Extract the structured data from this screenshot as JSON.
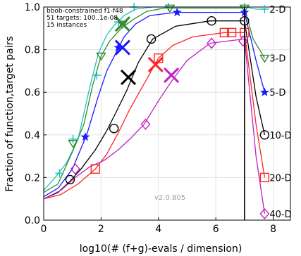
{
  "chart_data": {
    "type": "line",
    "title": "",
    "xlabel": "log10(# (f+g)-evals / dimension)",
    "ylabel": "Fraction of function,target pairs",
    "xlim": [
      0,
      8.6
    ],
    "ylim": [
      0,
      1.0
    ],
    "xticks": [
      "0",
      "2",
      "4",
      "6",
      "8"
    ],
    "yticks": [
      "0.0",
      "0.2",
      "0.4",
      "0.6",
      "0.8",
      "1.0"
    ],
    "legend_lines": [
      "bbob-constrained f1-f48",
      "51 targets: 100..1e-08",
      "15 instances"
    ],
    "version": "v2.0.805",
    "budget_line_x": 7.0,
    "series": [
      {
        "name": "2-D",
        "color": "#22c0c0",
        "marker": "plus",
        "x": [
          0,
          0.4,
          0.8,
          1.2,
          1.6,
          1.9,
          2.2,
          2.5,
          2.8,
          3.2,
          3.8,
          5.0,
          7.0,
          7.4,
          7.7
        ],
        "y": [
          0.14,
          0.2,
          0.27,
          0.38,
          0.62,
          0.78,
          0.87,
          0.92,
          0.96,
          0.99,
          1.0,
          1.0,
          1.0,
          0.99,
          0.99
        ]
      },
      {
        "name": "3-D",
        "color": "#2e8b2e",
        "marker": "triangle-down",
        "x": [
          0,
          0.5,
          1.0,
          1.4,
          1.7,
          2.0,
          2.3,
          2.7,
          3.1,
          3.6,
          4.2,
          5.5,
          7.0,
          7.3,
          7.7
        ],
        "y": [
          0.13,
          0.17,
          0.32,
          0.45,
          0.63,
          0.77,
          0.84,
          0.9,
          0.94,
          0.98,
          0.995,
          0.995,
          0.995,
          0.85,
          0.76
        ]
      },
      {
        "name": "5-D",
        "color": "#1a1aff",
        "marker": "star",
        "x": [
          0,
          0.5,
          1.0,
          1.5,
          1.9,
          2.2,
          2.5,
          2.8,
          3.2,
          3.7,
          4.6,
          5.5,
          7.0,
          7.4,
          7.7
        ],
        "y": [
          0.11,
          0.15,
          0.24,
          0.4,
          0.58,
          0.7,
          0.78,
          0.86,
          0.92,
          0.96,
          0.975,
          0.975,
          0.975,
          0.75,
          0.6
        ]
      },
      {
        "name": "10-D",
        "color": "#000000",
        "marker": "circle",
        "x": [
          0,
          0.5,
          0.9,
          1.3,
          1.8,
          2.2,
          2.5,
          2.9,
          3.3,
          3.8,
          4.6,
          5.8,
          7.0,
          7.4,
          7.7
        ],
        "y": [
          0.1,
          0.13,
          0.18,
          0.24,
          0.33,
          0.42,
          0.5,
          0.61,
          0.74,
          0.85,
          0.91,
          0.935,
          0.935,
          0.58,
          0.4
        ]
      },
      {
        "name": "20-D",
        "color": "#ff2222",
        "marker": "square",
        "x": [
          0,
          0.6,
          1.2,
          1.8,
          2.2,
          2.6,
          3.0,
          3.5,
          4.0,
          4.5,
          5.2,
          6.3,
          7.0,
          7.4,
          7.7
        ],
        "y": [
          0.1,
          0.12,
          0.17,
          0.24,
          0.31,
          0.41,
          0.52,
          0.64,
          0.76,
          0.82,
          0.86,
          0.88,
          0.88,
          0.45,
          0.2
        ]
      },
      {
        "name": "40-D",
        "color": "#c020c0",
        "marker": "diamond",
        "x": [
          0,
          0.6,
          1.1,
          1.6,
          2.1,
          2.6,
          3.0,
          3.5,
          4.0,
          4.5,
          5.0,
          5.8,
          7.0,
          7.4,
          7.7
        ],
        "y": [
          0.1,
          0.14,
          0.2,
          0.25,
          0.28,
          0.33,
          0.38,
          0.45,
          0.56,
          0.66,
          0.75,
          0.83,
          0.85,
          0.3,
          0.03
        ]
      }
    ],
    "markers": {
      "2-D": {
        "x": [
          0.55,
          1.02,
          1.85,
          2.6,
          3.15,
          4.35,
          7.0
        ],
        "y": [
          0.22,
          0.38,
          0.68,
          0.93,
          1.0,
          1.0,
          1.0
        ]
      },
      "3-D": {
        "x": [
          1.02,
          2.0,
          2.75,
          4.4,
          7.0
        ],
        "y": [
          0.36,
          0.77,
          0.92,
          0.995,
          0.995
        ]
      },
      "5-D": {
        "x": [
          1.45,
          2.6,
          4.65,
          7.0
        ],
        "y": [
          0.39,
          0.81,
          0.975,
          0.975
        ]
      },
      "10-D": {
        "x": [
          0.92,
          2.45,
          3.75,
          5.85,
          7.0
        ],
        "y": [
          0.19,
          0.43,
          0.85,
          0.935,
          0.935
        ]
      },
      "20-D": {
        "x": [
          1.8,
          4.0,
          6.3,
          6.55,
          7.0
        ],
        "y": [
          0.24,
          0.76,
          0.88,
          0.88,
          0.88
        ]
      },
      "40-D": {
        "x": [
          1.1,
          3.55,
          5.85,
          6.95
        ],
        "y": [
          0.24,
          0.45,
          0.83,
          0.84
        ]
      }
    },
    "crosses": [
      {
        "series": "3-D",
        "x": 2.75,
        "y": 0.92
      },
      {
        "series": "5-D",
        "x": 2.75,
        "y": 0.81
      },
      {
        "series": "10-D",
        "x": 2.95,
        "y": 0.67
      },
      {
        "series": "20-D",
        "x": 3.9,
        "y": 0.73
      },
      {
        "series": "40-D",
        "x": 4.45,
        "y": 0.68
      }
    ]
  }
}
